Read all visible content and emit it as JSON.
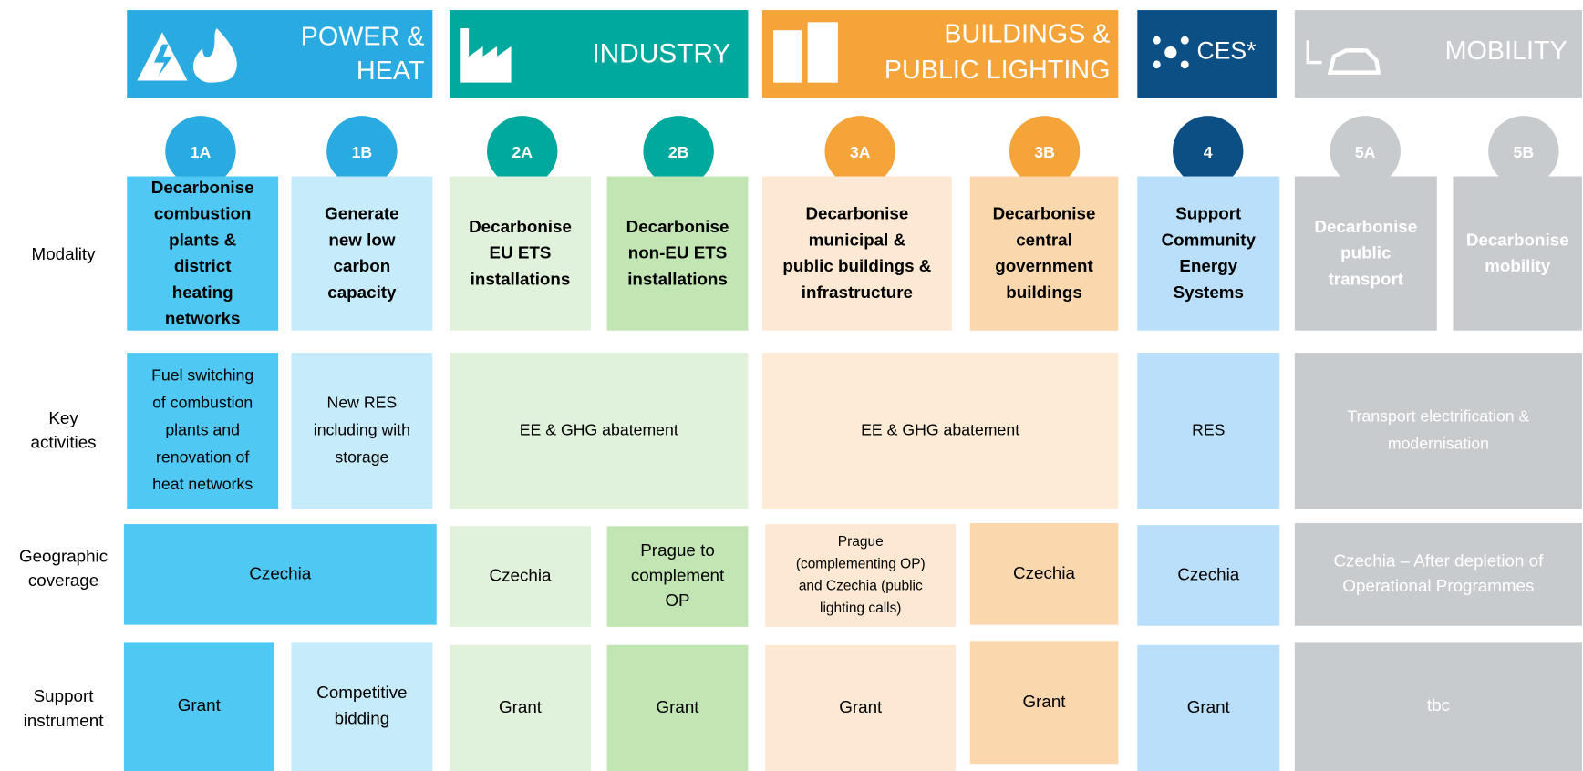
{
  "row_labels": [
    [
      "Modality"
    ],
    [
      "Key",
      "activities"
    ],
    [
      "Geographic",
      "coverage"
    ],
    [
      "Support",
      "instrument"
    ]
  ],
  "sectors": [
    {
      "title": [
        "POWER &",
        "HEAT"
      ]
    },
    {
      "title": [
        "INDUSTRY"
      ]
    },
    {
      "title": [
        "BUILDINGS &",
        "PUBLIC LIGHTING"
      ]
    },
    {
      "title": [
        "CES*"
      ]
    },
    {
      "title": [
        "MOBILITY"
      ]
    }
  ],
  "modalities": [
    {
      "id": "1A",
      "lines": [
        "Decarbonise",
        "combustion",
        "plants &",
        "district",
        "heating",
        "networks"
      ]
    },
    {
      "id": "1B",
      "lines": [
        "Generate",
        "new low",
        "carbon",
        "capacity"
      ]
    },
    {
      "id": "2A",
      "lines": [
        "Decarbonise",
        "EU ETS",
        "installations"
      ]
    },
    {
      "id": "2B",
      "lines": [
        "Decarbonise",
        "non-EU ETS",
        "installations"
      ]
    },
    {
      "id": "3A",
      "lines": [
        "Decarbonise",
        "municipal &",
        "public buildings &",
        "infrastructure"
      ]
    },
    {
      "id": "3B",
      "lines": [
        "Decarbonise",
        "central",
        "government",
        "buildings"
      ]
    },
    {
      "id": "4",
      "lines": [
        "Support",
        "Community",
        "Energy",
        "Systems"
      ]
    },
    {
      "id": "5A",
      "lines": [
        "Decarbonise",
        "public",
        "transport"
      ]
    },
    {
      "id": "5B",
      "lines": [
        "Decarbonise",
        "mobility"
      ]
    }
  ],
  "key_activities": [
    [
      "Fuel switching",
      "of combustion",
      "plants and",
      "renovation of",
      "heat networks"
    ],
    [
      "New RES",
      "including with",
      "storage"
    ],
    [
      "EE & GHG abatement"
    ],
    [
      "EE & GHG abatement"
    ],
    [
      "RES"
    ],
    [
      "Transport electrification &",
      "modernisation"
    ]
  ],
  "geographic_coverage": [
    [
      "Czechia"
    ],
    [
      "Czechia"
    ],
    [
      "Prague to",
      "complement",
      "OP"
    ],
    [
      "Prague",
      "(complementing OP)",
      "and Czechia (public",
      "lighting calls)"
    ],
    [
      "Czechia"
    ],
    [
      "Czechia"
    ],
    [
      "Czechia – After depletion of",
      "Operational Programmes"
    ]
  ],
  "support_instrument": [
    [
      "Grant"
    ],
    [
      "Competitive",
      "bidding"
    ],
    [
      "Grant"
    ],
    [
      "Grant"
    ],
    [
      "Grant"
    ],
    [
      "Grant"
    ],
    [
      "Grant"
    ],
    [
      "tbc"
    ]
  ]
}
